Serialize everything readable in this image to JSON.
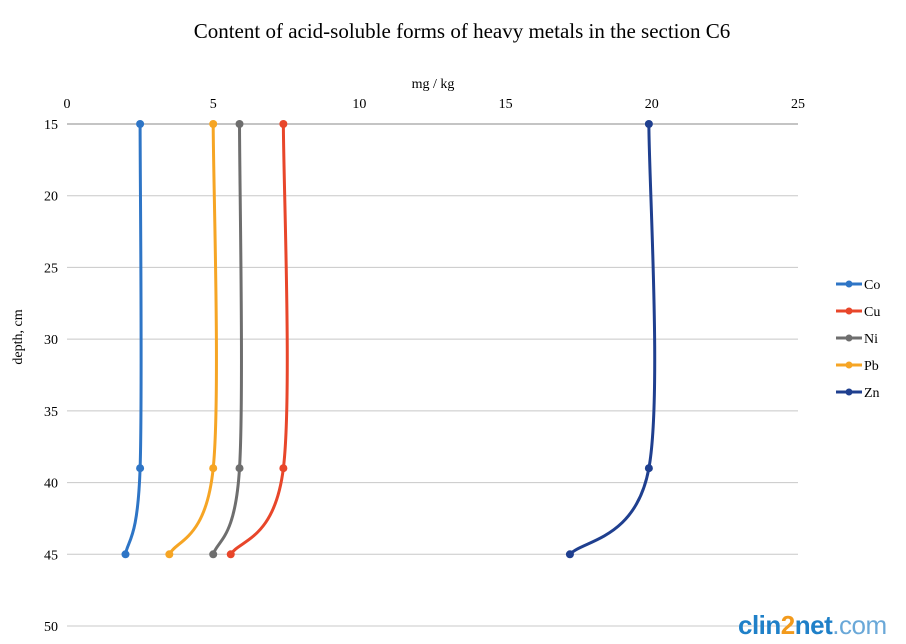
{
  "chart_data": {
    "type": "line",
    "title": "Content of acid-soluble forms of heavy metals in the section C6",
    "xlabel": "mg / kg",
    "ylabel": "depth, cm",
    "xlim": [
      0,
      25
    ],
    "ylim": [
      15,
      50
    ],
    "x_ticks": [
      "0",
      "5",
      "10",
      "15",
      "20",
      "25"
    ],
    "y_ticks": [
      "15",
      "20",
      "25",
      "30",
      "35",
      "40",
      "45",
      "50"
    ],
    "x_axis_position": "top",
    "y_axis_reversed": true,
    "grid": true,
    "legend_position": "right",
    "depths": [
      15,
      39,
      45
    ],
    "series": [
      {
        "name": "Co",
        "color": "#2e75c6",
        "x": [
          2.5,
          2.5,
          2.0
        ],
        "y": [
          15,
          39,
          45
        ]
      },
      {
        "name": "Cu",
        "color": "#e8462a",
        "x": [
          7.4,
          7.4,
          5.6
        ],
        "y": [
          15,
          39,
          45
        ]
      },
      {
        "name": "Ni",
        "color": "#6e6e6e",
        "x": [
          5.9,
          5.9,
          5.0
        ],
        "y": [
          15,
          39,
          45
        ]
      },
      {
        "name": "Pb",
        "color": "#f6a524",
        "x": [
          5.0,
          5.0,
          3.5
        ],
        "y": [
          15,
          39,
          45
        ]
      },
      {
        "name": "Zn",
        "color": "#1f3f8f",
        "x": [
          19.9,
          19.9,
          17.2
        ],
        "y": [
          15,
          39,
          45
        ]
      }
    ]
  },
  "watermark": {
    "part1": "clin",
    "part2": "2",
    "part3": "net",
    "part4": ".com"
  }
}
